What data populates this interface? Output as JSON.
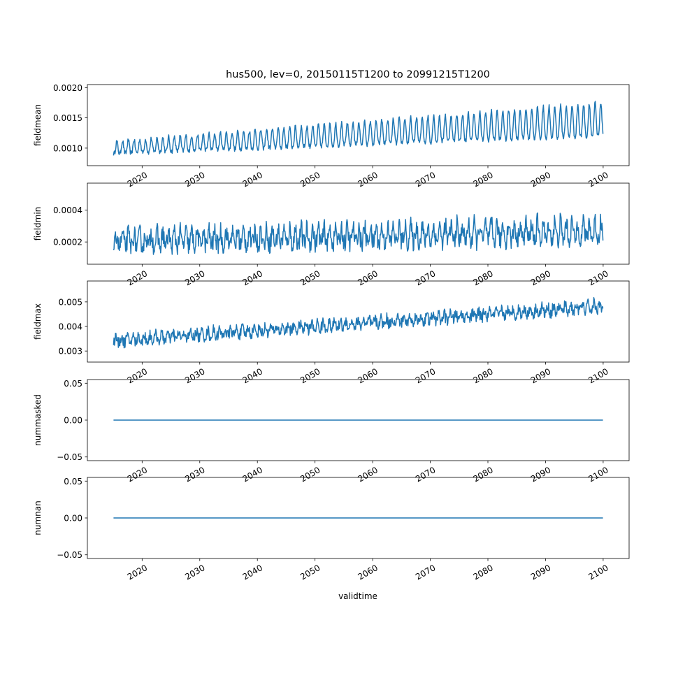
{
  "figure": {
    "title": "hus500, lev=0, 20150115T1200 to 20991215T1200",
    "xlabel": "validtime"
  },
  "style": {
    "line_color": "#1f77b4",
    "axes_color": "#000000",
    "background": "#ffffff"
  },
  "chart_data": [
    {
      "type": "line",
      "ylabel": "fieldmean",
      "xlim": [
        2010.5,
        2104.5
      ],
      "ylim": [
        0.00071,
        0.00205
      ],
      "x_ticks": [
        "2020",
        "2030",
        "2040",
        "2050",
        "2060",
        "2070",
        "2080",
        "2090",
        "2100"
      ],
      "y_ticks": [
        "0.0010",
        "0.0015",
        "0.0020"
      ],
      "y_tick_values": [
        0.001,
        0.0015,
        0.002
      ],
      "x_range": [
        2015.04,
        2099.96
      ],
      "profile": {
        "period_years": 1,
        "base_start": 0.00098,
        "base_end": 0.0014,
        "amp_start": 0.0002,
        "amp_end": 0.00055,
        "phase_peak": 0.6,
        "noise": 4e-05
      }
    },
    {
      "type": "line",
      "ylabel": "fieldmin",
      "xlim": [
        2010.5,
        2104.5
      ],
      "ylim": [
        6e-05,
        0.00057
      ],
      "x_ticks": [
        "2020",
        "2030",
        "2040",
        "2050",
        "2060",
        "2070",
        "2080",
        "2090",
        "2100"
      ],
      "y_ticks": [
        "0.0002",
        "0.0004"
      ],
      "y_tick_values": [
        0.0002,
        0.0004
      ],
      "x_range": [
        2015.04,
        2099.96
      ],
      "profile": {
        "period_years": 1,
        "base_start": 0.0002,
        "base_end": 0.00026,
        "amp_start": 8e-05,
        "amp_end": 0.00012,
        "phase_peak": 0.6,
        "noise": 6e-05
      }
    },
    {
      "type": "line",
      "ylabel": "fieldmax",
      "xlim": [
        2010.5,
        2104.5
      ],
      "ylim": [
        0.00255,
        0.00585
      ],
      "x_ticks": [
        "2020",
        "2030",
        "2040",
        "2050",
        "2060",
        "2070",
        "2080",
        "2090",
        "2100"
      ],
      "y_ticks": [
        "0.003",
        "0.004",
        "0.005"
      ],
      "y_tick_values": [
        0.003,
        0.004,
        0.005
      ],
      "x_range": [
        2015.04,
        2099.96
      ],
      "profile": {
        "period_years": 1,
        "base_start": 0.0034,
        "base_end": 0.0048,
        "amp_start": 0.00025,
        "amp_end": 0.0003,
        "phase_peak": 0.4,
        "noise": 0.00022
      }
    },
    {
      "type": "line",
      "ylabel": "nummasked",
      "xlim": [
        2010.5,
        2104.5
      ],
      "ylim": [
        -0.055,
        0.055
      ],
      "x_ticks": [
        "2020",
        "2030",
        "2040",
        "2050",
        "2060",
        "2070",
        "2080",
        "2090",
        "2100"
      ],
      "y_ticks": [
        "−0.05",
        "0.00",
        "0.05"
      ],
      "y_tick_values": [
        -0.05,
        0.0,
        0.05
      ],
      "x_range": [
        2015.04,
        2099.96
      ],
      "constant": 0.0
    },
    {
      "type": "line",
      "ylabel": "numnan",
      "xlim": [
        2010.5,
        2104.5
      ],
      "ylim": [
        -0.055,
        0.055
      ],
      "x_ticks": [
        "2020",
        "2030",
        "2040",
        "2050",
        "2060",
        "2070",
        "2080",
        "2090",
        "2100"
      ],
      "y_ticks": [
        "−0.05",
        "0.00",
        "0.05"
      ],
      "y_tick_values": [
        -0.05,
        0.0,
        0.05
      ],
      "x_range": [
        2015.04,
        2099.96
      ],
      "constant": 0.0
    }
  ]
}
